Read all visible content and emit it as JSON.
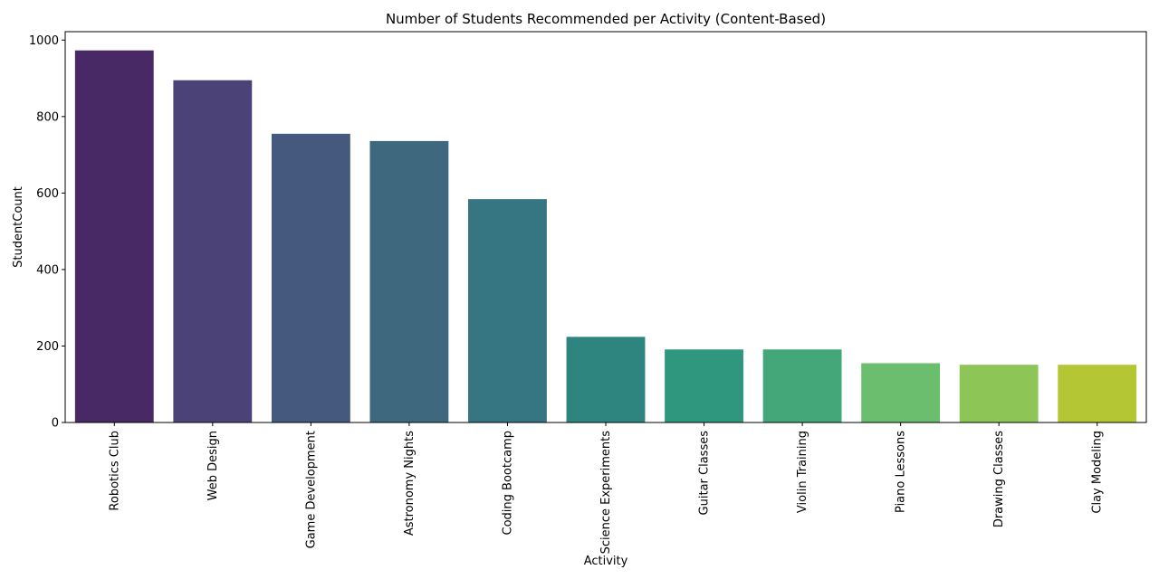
{
  "chart_data": {
    "type": "bar",
    "title": "Number of Students Recommended per Activity (Content-Based)",
    "xlabel": "Activity",
    "ylabel": "StudentCount",
    "categories": [
      "Robotics Club",
      "Web Design",
      "Game Development",
      "Astronomy Nights",
      "Coding Bootcamp",
      "Science Experiments",
      "Guitar Classes",
      "Violin Training",
      "Piano Lessons",
      "Drawing Classes",
      "Clay Modeling"
    ],
    "values": [
      973,
      895,
      755,
      736,
      584,
      224,
      191,
      191,
      155,
      151,
      151
    ],
    "colors": [
      "#482865",
      "#4B4277",
      "#45587D",
      "#3D687D",
      "#357682",
      "#2E857F",
      "#2E977E",
      "#43A77A",
      "#6ABE6E",
      "#8DC556",
      "#B5C635"
    ],
    "yticks": [
      0,
      200,
      400,
      600,
      800,
      1000
    ],
    "ylim": [
      0,
      1022
    ],
    "grid": false,
    "legend": "none"
  }
}
